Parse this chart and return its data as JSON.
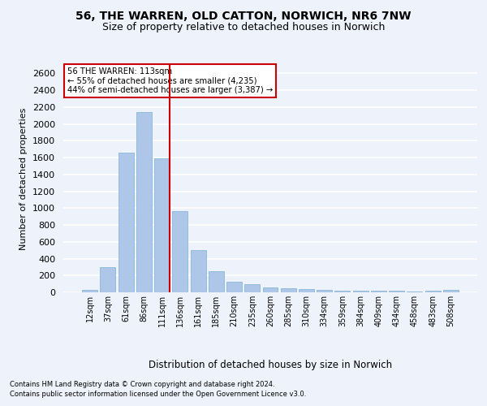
{
  "title1": "56, THE WARREN, OLD CATTON, NORWICH, NR6 7NW",
  "title2": "Size of property relative to detached houses in Norwich",
  "xlabel": "Distribution of detached houses by size in Norwich",
  "ylabel": "Number of detached properties",
  "annotation_line1": "56 THE WARREN: 113sqm",
  "annotation_line2": "← 55% of detached houses are smaller (4,235)",
  "annotation_line3": "44% of semi-detached houses are larger (3,387) →",
  "footnote1": "Contains HM Land Registry data © Crown copyright and database right 2024.",
  "footnote2": "Contains public sector information licensed under the Open Government Licence v3.0.",
  "bar_labels": [
    "12sqm",
    "37sqm",
    "61sqm",
    "86sqm",
    "111sqm",
    "136sqm",
    "161sqm",
    "185sqm",
    "210sqm",
    "235sqm",
    "260sqm",
    "285sqm",
    "310sqm",
    "334sqm",
    "359sqm",
    "384sqm",
    "409sqm",
    "434sqm",
    "458sqm",
    "483sqm",
    "508sqm"
  ],
  "bar_values": [
    25,
    300,
    1660,
    2140,
    1590,
    960,
    500,
    250,
    125,
    100,
    55,
    50,
    35,
    30,
    20,
    20,
    20,
    15,
    5,
    15,
    25
  ],
  "bar_color": "#aec6e8",
  "bar_edge_color": "#7ab0d4",
  "vline_index": 4,
  "vline_color": "#cc0000",
  "ylim": [
    0,
    2700
  ],
  "yticks": [
    0,
    200,
    400,
    600,
    800,
    1000,
    1200,
    1400,
    1600,
    1800,
    2000,
    2200,
    2400,
    2600
  ],
  "background_color": "#eef2fa",
  "plot_bg_color": "#eef2fa",
  "grid_color": "#ffffff",
  "annotation_box_color": "#ffffff",
  "annotation_box_edge": "#cc0000"
}
